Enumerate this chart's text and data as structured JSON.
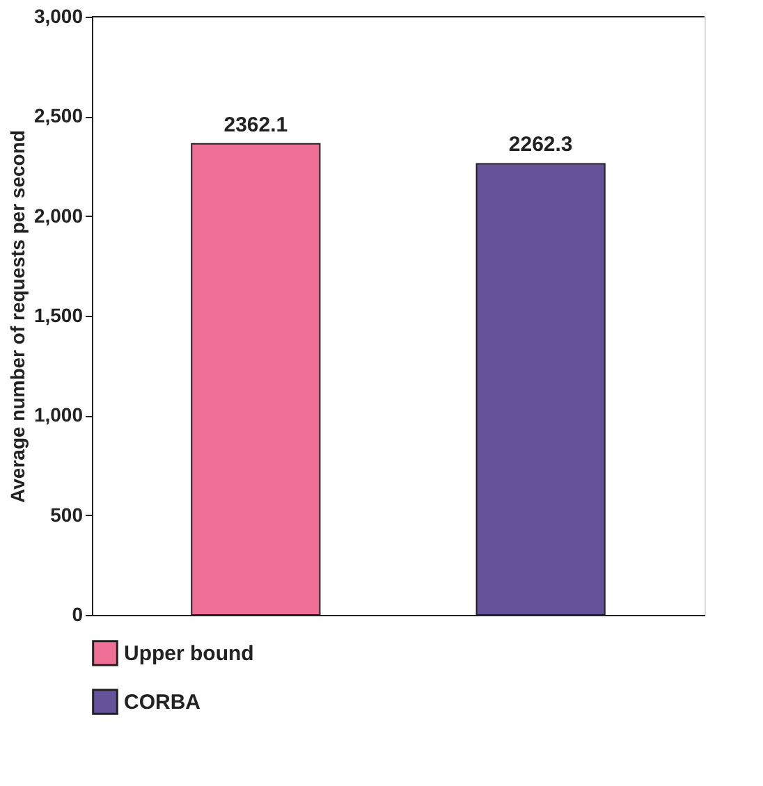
{
  "chart_data": {
    "type": "bar",
    "ylabel": "Average number of requests per second",
    "categories": [
      null,
      null
    ],
    "series": [
      {
        "name": "Upper bound",
        "color": "#ee7096",
        "values": [
          2362.1,
          null
        ]
      },
      {
        "name": "CORBA",
        "color": "#66519b",
        "values": [
          null,
          2262.3
        ]
      }
    ],
    "ylim": [
      0,
      3000
    ],
    "yticks": [
      {
        "value": 0,
        "label": "0"
      },
      {
        "value": 500,
        "label": "500"
      },
      {
        "value": 1000,
        "label": "1,000"
      },
      {
        "value": 1500,
        "label": "1,500"
      },
      {
        "value": 2000,
        "label": "2,000"
      },
      {
        "value": 2500,
        "label": "2,500"
      },
      {
        "value": 3000,
        "label": "3,000"
      }
    ],
    "data_labels": true,
    "grid": false,
    "legend": "bottom",
    "tick_labels": "y"
  }
}
